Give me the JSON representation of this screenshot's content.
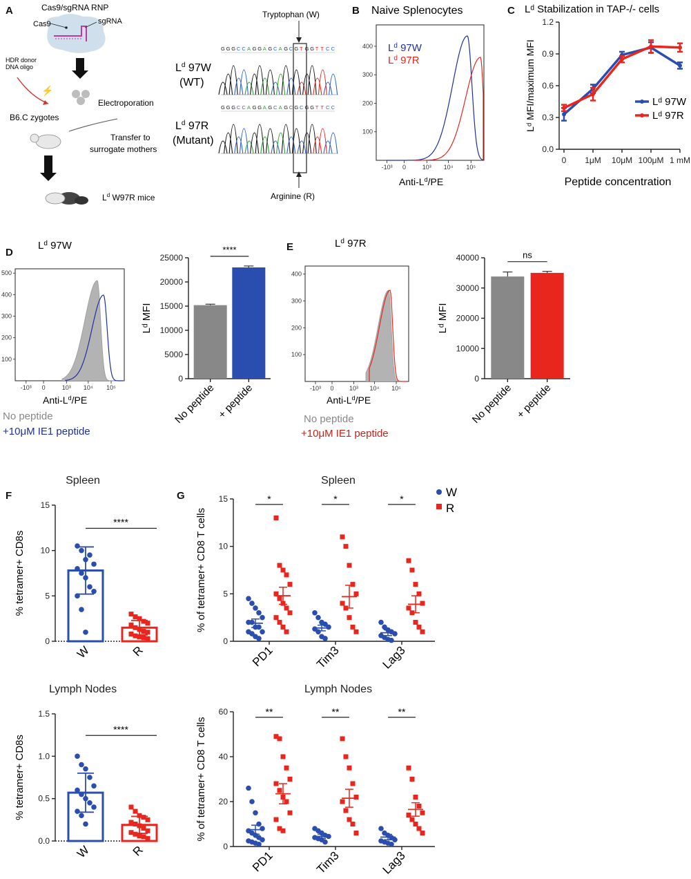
{
  "colors": {
    "blue": "#2a4db0",
    "navy": "#1f2f9e",
    "red": "#e8261d",
    "grey": "#a9a9a9",
    "darkgrey": "#888888"
  },
  "panelA": {
    "letter": "A",
    "rnp": "Cas9/sgRNA RNP",
    "cas9": "Cas9",
    "sgrna": "sgRNA",
    "hdr1": "HDR donor",
    "hdr2": "DNA oligo",
    "zygotes": "B6.C zygotes",
    "electro": "Electroporation",
    "transfer1": "Transfer to",
    "transfer2": "surrogate mothers",
    "mice": "L",
    "mice_sup": "d",
    "mice_rest": " W97R mice",
    "trp": "Tryptophan (W)",
    "arg": "Arginine (R)",
    "wt_line1": "L",
    "wt_sup": "d",
    "wt_line1b": " 97W",
    "wt_line2": "(WT)",
    "mut_line1": "L",
    "mut_sup": "d",
    "mut_line1b": " 97R",
    "mut_line2": "(Mutant)",
    "seq": [
      "G",
      "G",
      "G",
      "C",
      "C",
      "A",
      "G",
      "G",
      "A",
      "G",
      "C",
      "A",
      "G",
      "C",
      "G",
      "T",
      "G",
      "G",
      "T",
      "T",
      "C",
      "C"
    ],
    "seq_mut": [
      "G",
      "G",
      "G",
      "C",
      "C",
      "A",
      "G",
      "G",
      "A",
      "G",
      "C",
      "A",
      "G",
      "C",
      "G",
      "C",
      "G",
      "G",
      "T",
      "T",
      "C",
      "C"
    ]
  },
  "panelB": {
    "letter": "B",
    "title": "Naive Splenocytes",
    "legend": [
      {
        "name": "L",
        "sup": "d",
        "rest": " 97W"
      },
      {
        "name": "L",
        "sup": "d",
        "rest": " 97R"
      }
    ],
    "yticks": [
      "100",
      "200",
      "300",
      "400"
    ],
    "xticks": [
      "-10³",
      "0",
      "10³",
      "10⁴",
      "10⁵"
    ],
    "xlabel": "Anti-L",
    "xlabel_sup": "d",
    "xlabel_rest": "/PE"
  },
  "chart_data": [
    {
      "panel": "C",
      "type": "line",
      "title": "Lᵈ Stabilization in TAP-/- cells",
      "categories": [
        "0",
        "1μM",
        "10μM",
        "100μM",
        "1 mM"
      ],
      "series": [
        {
          "name": "Lᵈ 97W",
          "values": [
            0.33,
            0.57,
            0.89,
            0.96,
            0.79
          ],
          "errors": [
            0.06,
            0.04,
            0.03,
            0.05,
            0.03
          ]
        },
        {
          "name": "Lᵈ 97R",
          "values": [
            0.39,
            0.52,
            0.85,
            0.97,
            0.96
          ],
          "errors": [
            0.03,
            0.06,
            0.03,
            0.06,
            0.04
          ]
        }
      ],
      "ylim": [
        0,
        1.2
      ],
      "yticks": [
        "0.0",
        "0.3",
        "0.6",
        "0.9",
        "1.2"
      ],
      "ylabel": "Lᵈ MFI/maximum MFI",
      "xlabel": "Peptide concentration"
    },
    {
      "panel": "D-bar",
      "type": "bar",
      "categories": [
        "No peptide",
        "+ peptide"
      ],
      "values": [
        15200,
        23000
      ],
      "errors": [
        200,
        300
      ],
      "ylim": [
        0,
        25000
      ],
      "yticks": [
        "0",
        "5000",
        "10000",
        "15000",
        "20000",
        "25000"
      ],
      "ylabel": "Lᵈ MFI",
      "significance": "****"
    },
    {
      "panel": "E-bar",
      "type": "bar",
      "categories": [
        "No peptide",
        "+ peptide"
      ],
      "values": [
        33800,
        35000
      ],
      "errors": [
        1500,
        500
      ],
      "ylim": [
        0,
        40000
      ],
      "yticks": [
        "0",
        "10000",
        "20000",
        "30000",
        "40000"
      ],
      "ylabel": "Lᵈ MFI",
      "significance": "ns"
    },
    {
      "panel": "F-spleen",
      "type": "scatter-bar",
      "title": "Spleen",
      "categories": [
        "W",
        "R"
      ],
      "means": [
        7.8,
        1.5
      ],
      "sd": [
        2.6,
        0.8
      ],
      "points": [
        [
          10.5,
          10,
          9,
          9.5,
          8.5,
          8,
          7.5,
          7,
          6,
          5.5,
          5,
          3.5,
          1
        ],
        [
          3,
          2.7,
          2.5,
          2.2,
          2,
          1.8,
          1.5,
          1.3,
          1.1,
          1,
          0.8,
          0.6,
          0.5,
          0.4,
          0.3
        ]
      ],
      "ylim": [
        0,
        15
      ],
      "yticks": [
        "0",
        "5",
        "10",
        "15"
      ],
      "ylabel": "% tetramer+ CD8s",
      "significance": "****"
    },
    {
      "panel": "F-lymph",
      "type": "scatter-bar",
      "title": "Lymph Nodes",
      "categories": [
        "W",
        "R"
      ],
      "means": [
        0.57,
        0.19
      ],
      "sd": [
        0.23,
        0.1
      ],
      "points": [
        [
          1.0,
          0.9,
          0.85,
          0.75,
          0.65,
          0.6,
          0.55,
          0.5,
          0.45,
          0.4,
          0.35,
          0.3,
          0.2
        ],
        [
          0.4,
          0.35,
          0.3,
          0.28,
          0.25,
          0.22,
          0.2,
          0.18,
          0.15,
          0.12,
          0.1,
          0.08,
          0.06,
          0.05,
          0.03
        ]
      ],
      "ylim": [
        0,
        1.5
      ],
      "yticks": [
        "0.0",
        "0.5",
        "1.0",
        "1.5"
      ],
      "ylabel": "% tetramer+ CD8s",
      "significance": "****"
    },
    {
      "panel": "G-spleen",
      "type": "scatter",
      "title": "Spleen",
      "groups": [
        "PD1",
        "Tim3",
        "Lag3"
      ],
      "series": [
        {
          "name": "W",
          "means": [
            1.9,
            1.4,
            0.9
          ],
          "sem": [
            0.45,
            0.3,
            0.3
          ],
          "points": [
            [
              4.5,
              4,
              3.5,
              3,
              2.5,
              2,
              2,
              1.5,
              1.5,
              1,
              1,
              0.8,
              0.5,
              0.3
            ],
            [
              3,
              2.5,
              2,
              1.8,
              1.5,
              1.3,
              1,
              0.5,
              0.3
            ],
            [
              2,
              1.5,
              1.2,
              1,
              0.8,
              0.6,
              0.4,
              0.2,
              0.1
            ]
          ]
        },
        {
          "name": "R",
          "means": [
            4.8,
            4.7,
            3.9
          ],
          "sem": [
            0.9,
            1.2,
            0.9
          ],
          "points": [
            [
              13,
              8,
              7.5,
              7,
              6,
              5,
              4.5,
              4,
              3.5,
              3,
              2.5,
              2,
              1.5,
              1
            ],
            [
              11,
              10,
              8,
              6,
              5,
              4,
              3.5,
              2.5,
              1.5,
              1
            ],
            [
              8.5,
              7.5,
              6,
              5,
              4,
              3.5,
              3,
              2,
              1.5,
              1
            ]
          ]
        }
      ],
      "ylim": [
        0,
        15
      ],
      "yticks": [
        "0",
        "5",
        "10",
        "15"
      ],
      "ylabel": "% of tetramer+ CD8 T cells",
      "significance": [
        "*",
        "*",
        "*"
      ]
    },
    {
      "panel": "G-lymph",
      "type": "scatter",
      "title": "Lymph Nodes",
      "groups": [
        "PD1",
        "Tim3",
        "Lag3"
      ],
      "series": [
        {
          "name": "W",
          "means": [
            7.5,
            4.5,
            4.2
          ],
          "sem": [
            2,
            1,
            1.2
          ],
          "points": [
            [
              26,
              20,
              15,
              10,
              8,
              7,
              6,
              5,
              4,
              3,
              2.5,
              2,
              1.5,
              1
            ],
            [
              8,
              7,
              6,
              5,
              4.5,
              4,
              3.5,
              3,
              2
            ],
            [
              8,
              6,
              5,
              4,
              3,
              2.5,
              2,
              1.5,
              1
            ]
          ]
        },
        {
          "name": "R",
          "means": [
            23.5,
            21.5,
            16.5
          ],
          "sem": [
            4.5,
            4,
            3
          ],
          "points": [
            [
              49,
              48,
              40,
              35,
              30,
              28,
              25,
              22,
              20,
              15,
              12,
              8,
              7
            ],
            [
              48,
              40,
              35,
              28,
              22,
              20,
              16,
              12,
              10,
              6
            ],
            [
              35,
              30,
              22,
              18,
              15,
              14,
              12,
              10,
              8,
              6
            ]
          ]
        }
      ],
      "ylim": [
        0,
        60
      ],
      "yticks": [
        "0",
        "20",
        "40",
        "60"
      ],
      "ylabel": "% of tetramer+ CD8 T cells",
      "significance": [
        "**",
        "**",
        "**"
      ]
    }
  ],
  "panelD": {
    "letter": "D",
    "title": "L",
    "title_sup": "d",
    "title_rest": " 97W",
    "yticks": [
      "100",
      "200",
      "300",
      "400",
      "500"
    ],
    "xticks": [
      "-10³",
      "0",
      "10³",
      "10⁴",
      "10⁵"
    ],
    "xlabel": "Anti-L",
    "xlabel_sup": "d",
    "xlabel_rest": "/PE",
    "leg1": "No peptide",
    "leg2": "+10μM IE1 peptide"
  },
  "panelE": {
    "letter": "E",
    "title": "L",
    "title_sup": "d",
    "title_rest": " 97R",
    "yticks": [
      "100",
      "200",
      "300",
      "400"
    ],
    "xticks": [
      "-10³",
      "0",
      "10³",
      "10⁴",
      "10⁵"
    ],
    "xlabel": "Anti-L",
    "xlabel_sup": "d",
    "xlabel_rest": "/PE",
    "leg1": "No peptide",
    "leg2": "+10μM IE1 peptide"
  },
  "panelF": {
    "letter": "F"
  },
  "panelG": {
    "letter": "G",
    "legendW": "W",
    "legendR": "R"
  },
  "panelCletter": "C"
}
